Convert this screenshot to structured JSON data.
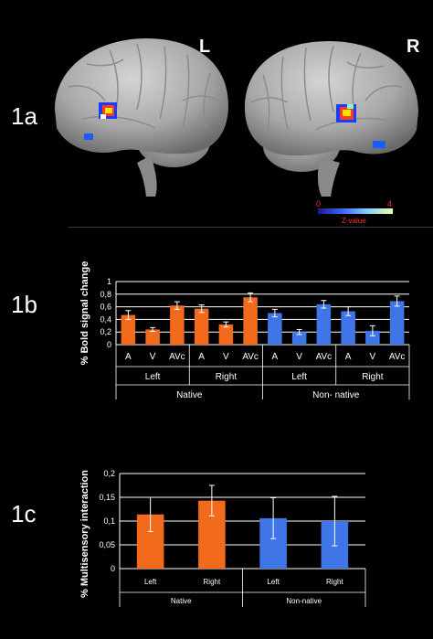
{
  "panels": {
    "p1a": "1a",
    "p1b": "1b",
    "p1c": "1c"
  },
  "hemispheres": {
    "left": "L",
    "right": "R"
  },
  "colorbar": {
    "min": "0",
    "max": "4",
    "title": "Z-value"
  },
  "colors": {
    "native": "#f26b1d",
    "nonnative": "#3f75e6",
    "axis": "#ffffff"
  },
  "chart_data": [
    {
      "type": "bar",
      "ylabel": "% Bold signal change",
      "ylim": [
        0,
        1
      ],
      "yticks": [
        "0",
        "0,2",
        "0,4",
        "0,6",
        "0,8",
        "1"
      ],
      "grid": true,
      "categories": [
        "A",
        "V",
        "AVc",
        "A",
        "V",
        "AVc",
        "A",
        "V",
        "AVc",
        "A",
        "V",
        "AVc"
      ],
      "hemisphere_labels": [
        "Left",
        "Right",
        "Left",
        "Right"
      ],
      "group_labels": [
        "Native",
        "Non- native"
      ],
      "values": [
        0.47,
        0.24,
        0.62,
        0.57,
        0.32,
        0.75,
        0.5,
        0.2,
        0.64,
        0.53,
        0.22,
        0.69
      ],
      "errors": [
        0.07,
        0.03,
        0.06,
        0.06,
        0.04,
        0.07,
        0.06,
        0.04,
        0.06,
        0.07,
        0.08,
        0.08
      ],
      "groups": [
        "native",
        "native",
        "native",
        "native",
        "native",
        "native",
        "nonnative",
        "nonnative",
        "nonnative",
        "nonnative",
        "nonnative",
        "nonnative"
      ]
    },
    {
      "type": "bar",
      "ylabel": "% Multisensory interaction",
      "ylim": [
        0,
        0.2
      ],
      "yticks": [
        "0",
        "0,05",
        "0,1",
        "0,15",
        "0,2"
      ],
      "grid": true,
      "categories": [
        "Left",
        "Right",
        "Left",
        "Right"
      ],
      "group_labels": [
        "Native",
        "Non-native"
      ],
      "values": [
        0.114,
        0.143,
        0.106,
        0.1
      ],
      "errors": [
        0.036,
        0.032,
        0.043,
        0.052
      ],
      "groups": [
        "native",
        "native",
        "nonnative",
        "nonnative"
      ]
    }
  ]
}
